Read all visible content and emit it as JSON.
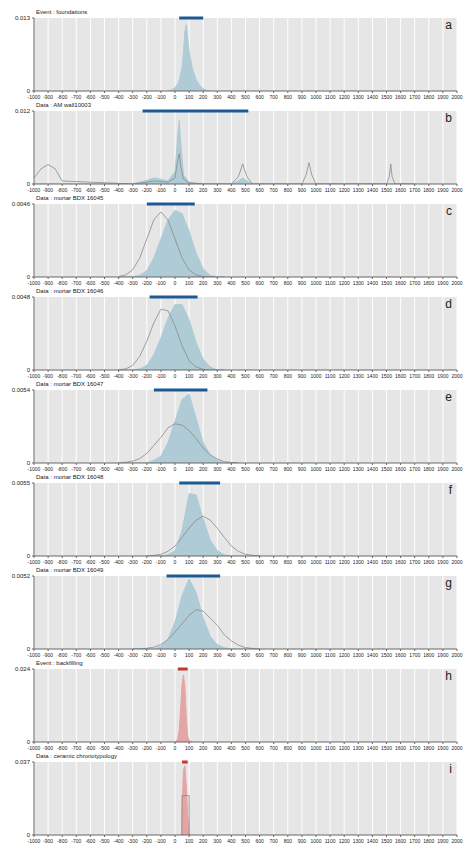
{
  "chart_data": [
    {
      "type": "area",
      "title": "Event : foundations",
      "annotation": "a",
      "grid": true,
      "xlim": [
        -1000,
        2000
      ],
      "xticks": [
        -1000,
        -900,
        -800,
        -700,
        -600,
        -500,
        -400,
        -300,
        -200,
        -100,
        0,
        100,
        200,
        300,
        400,
        500,
        600,
        700,
        800,
        900,
        1000,
        1100,
        1200,
        1300,
        1400,
        1500,
        1600,
        1700,
        1800,
        1900,
        2000
      ],
      "ylim": [
        0,
        0.013
      ],
      "yticks": [
        0,
        0.013
      ],
      "x": [
        -50,
        -25,
        0,
        25,
        50,
        60,
        70,
        80,
        90,
        100,
        125,
        150,
        175,
        200,
        225,
        250
      ],
      "series": [
        {
          "type": "area",
          "color": "#aecbd6",
          "values": [
            0,
            0.0002,
            0.0006,
            0.0015,
            0.004,
            0.007,
            0.0105,
            0.0118,
            0.0095,
            0.007,
            0.0038,
            0.002,
            0.001,
            0.0004,
            0.0001,
            0
          ]
        }
      ],
      "range": {
        "values": [
          30,
          200
        ],
        "color": "#1d5a91"
      }
    },
    {
      "type": "area",
      "title": "Data : AM wall10003",
      "annotation": "b",
      "grid": true,
      "xlim": [
        -1000,
        2000
      ],
      "xticks": [
        -1000,
        -900,
        -800,
        -700,
        -600,
        -500,
        -400,
        -300,
        -200,
        -100,
        0,
        100,
        200,
        300,
        400,
        500,
        600,
        700,
        800,
        900,
        1000,
        1100,
        1200,
        1300,
        1400,
        1500,
        1600,
        1700,
        1800,
        1900,
        2000
      ],
      "ylim": [
        0,
        0.012
      ],
      "yticks": [
        0,
        0.012
      ],
      "x": [
        -1000,
        -950,
        -900,
        -850,
        -800,
        -300,
        -200,
        -150,
        -100,
        -50,
        0,
        20,
        30,
        40,
        60,
        100,
        200,
        400,
        450,
        480,
        510,
        550,
        900,
        930,
        950,
        970,
        1000,
        1500,
        1520,
        1530,
        1540,
        1560,
        1700
      ],
      "series": [
        {
          "type": "area",
          "color": "#aecbd6",
          "values": [
            0,
            0,
            0,
            0,
            0,
            0,
            0.0006,
            0.001,
            0.0008,
            0.0005,
            0.002,
            0.008,
            0.0105,
            0.007,
            0.0015,
            0.0003,
            0,
            0,
            0.0005,
            0.001,
            0.0005,
            0,
            0,
            0,
            0,
            0,
            0,
            0,
            0,
            0,
            0,
            0,
            0
          ]
        },
        {
          "type": "line",
          "color": "#8a8a8a",
          "values": [
            0.001,
            0.0025,
            0.0032,
            0.0025,
            0.0005,
            0,
            0.0003,
            0.0005,
            0.0004,
            0.0003,
            0.001,
            0.004,
            0.005,
            0.003,
            0.0008,
            0.0002,
            0,
            0,
            0.0012,
            0.0033,
            0.0012,
            0,
            0,
            0.0015,
            0.0035,
            0.0015,
            0,
            0,
            0.0012,
            0.0033,
            0.0012,
            0,
            0
          ]
        }
      ],
      "range": {
        "values": [
          -230,
          520
        ],
        "color": "#1d5a91"
      }
    },
    {
      "type": "area",
      "title": "Data : mortar BDX 16045",
      "annotation": "c",
      "grid": true,
      "xlim": [
        -1000,
        2000
      ],
      "xticks": [
        -1000,
        -900,
        -800,
        -700,
        -600,
        -500,
        -400,
        -300,
        -200,
        -100,
        0,
        100,
        200,
        300,
        400,
        500,
        600,
        700,
        800,
        900,
        1000,
        1100,
        1200,
        1300,
        1400,
        1500,
        1600,
        1700,
        1800,
        1900,
        2000
      ],
      "ylim": [
        0,
        0.0046
      ],
      "yticks": [
        0,
        0.0046
      ],
      "x": [
        -400,
        -350,
        -300,
        -250,
        -200,
        -150,
        -100,
        -50,
        0,
        50,
        100,
        150,
        200,
        250,
        300,
        350
      ],
      "series": [
        {
          "type": "area",
          "color": "#aecbd6",
          "values": [
            0,
            0,
            2e-05,
            0.0001,
            0.0004,
            0.0012,
            0.0024,
            0.0036,
            0.0042,
            0.004,
            0.0029,
            0.0015,
            0.0005,
            0.0001,
            0,
            0
          ]
        },
        {
          "type": "line",
          "color": "#8a8a8a",
          "values": [
            3e-05,
            0.00013,
            0.00045,
            0.0012,
            0.0024,
            0.0036,
            0.0041,
            0.0036,
            0.0024,
            0.0012,
            0.00045,
            0.00013,
            3e-05,
            0,
            0,
            0
          ]
        }
      ],
      "range": {
        "values": [
          -200,
          140
        ],
        "color": "#1d5a91"
      }
    },
    {
      "type": "area",
      "title": "Data : mortar BDX 16046",
      "annotation": "d",
      "grid": true,
      "xlim": [
        -1000,
        2000
      ],
      "xticks": [
        -1000,
        -900,
        -800,
        -700,
        -600,
        -500,
        -400,
        -300,
        -200,
        -100,
        0,
        100,
        200,
        300,
        400,
        500,
        600,
        700,
        800,
        900,
        1000,
        1100,
        1200,
        1300,
        1400,
        1500,
        1600,
        1700,
        1800,
        1900,
        2000
      ],
      "ylim": [
        0,
        0.0048
      ],
      "yticks": [
        0,
        0.0048
      ],
      "x": [
        -400,
        -350,
        -300,
        -250,
        -200,
        -150,
        -100,
        -50,
        0,
        50,
        100,
        150,
        200,
        250,
        300,
        350
      ],
      "series": [
        {
          "type": "area",
          "color": "#aecbd6",
          "values": [
            0,
            0,
            0,
            8e-05,
            0.0003,
            0.001,
            0.0021,
            0.0034,
            0.0043,
            0.0043,
            0.0033,
            0.0018,
            0.0007,
            0.0002,
            0,
            0
          ]
        },
        {
          "type": "line",
          "color": "#8a8a8a",
          "values": [
            1e-05,
            7e-05,
            0.0003,
            0.0009,
            0.0019,
            0.0031,
            0.004,
            0.0039,
            0.0029,
            0.0016,
            0.0006,
            0.0002,
            4e-05,
            0,
            0,
            0
          ]
        }
      ],
      "range": {
        "values": [
          -180,
          160
        ],
        "color": "#1d5a91"
      }
    },
    {
      "type": "area",
      "title": "Data : mortar BDX 16047",
      "annotation": "e",
      "grid": true,
      "xlim": [
        -1000,
        2000
      ],
      "xticks": [
        -1000,
        -900,
        -800,
        -700,
        -600,
        -500,
        -400,
        -300,
        -200,
        -100,
        0,
        100,
        200,
        300,
        400,
        500,
        600,
        700,
        800,
        900,
        1000,
        1100,
        1200,
        1300,
        1400,
        1500,
        1600,
        1700,
        1800,
        1900,
        2000
      ],
      "ylim": [
        0,
        0.0054
      ],
      "yticks": [
        0,
        0.0054
      ],
      "x": [
        -400,
        -350,
        -300,
        -250,
        -200,
        -150,
        -100,
        -50,
        0,
        50,
        100,
        150,
        200,
        250,
        300,
        350,
        400,
        450
      ],
      "series": [
        {
          "type": "area",
          "color": "#aecbd6",
          "values": [
            0,
            0,
            0,
            0,
            0,
            0.0002,
            0.0005,
            0.0015,
            0.0031,
            0.0047,
            0.0051,
            0.0033,
            0.0015,
            0.0006,
            0.0002,
            0,
            0,
            0
          ]
        },
        {
          "type": "line",
          "color": "#8a8a8a",
          "values": [
            1e-05,
            5e-05,
            0.00014,
            0.00033,
            0.00071,
            0.0013,
            0.0019,
            0.0026,
            0.0029,
            0.0028,
            0.0024,
            0.0018,
            0.0011,
            0.0006,
            0.0003,
            0.0001,
            4e-05,
            1e-05
          ]
        }
      ],
      "range": {
        "values": [
          -150,
          230
        ],
        "color": "#1d5a91"
      }
    },
    {
      "type": "area",
      "title": "Data : mortar BDX 16048",
      "annotation": "f",
      "grid": true,
      "xlim": [
        -1000,
        2000
      ],
      "xticks": [
        -1000,
        -900,
        -800,
        -700,
        -600,
        -500,
        -400,
        -300,
        -200,
        -100,
        0,
        100,
        200,
        300,
        400,
        500,
        600,
        700,
        800,
        900,
        1000,
        1100,
        1200,
        1300,
        1400,
        1500,
        1600,
        1700,
        1800,
        1900,
        2000
      ],
      "ylim": [
        0,
        0.0055
      ],
      "yticks": [
        0,
        0.0055
      ],
      "x": [
        -200,
        -150,
        -100,
        -50,
        0,
        50,
        100,
        150,
        200,
        250,
        300,
        350,
        400,
        450,
        500,
        550,
        600
      ],
      "series": [
        {
          "type": "area",
          "color": "#aecbd6",
          "values": [
            0,
            0,
            0,
            0.0001,
            0.0004,
            0.0019,
            0.0047,
            0.0046,
            0.0028,
            0.0012,
            0.0004,
            0.0001,
            0,
            0,
            0,
            0,
            0
          ]
        },
        {
          "type": "line",
          "color": "#8a8a8a",
          "values": [
            1e-05,
            5e-05,
            0.00013,
            0.00035,
            0.00075,
            0.0014,
            0.0021,
            0.0027,
            0.003,
            0.0027,
            0.0021,
            0.0014,
            0.00075,
            0.00035,
            0.00013,
            5e-05,
            1e-05
          ]
        }
      ],
      "range": {
        "values": [
          30,
          320
        ],
        "color": "#1d5a91"
      }
    },
    {
      "type": "area",
      "title": "Data : mortar BDX 16049",
      "annotation": "g",
      "grid": true,
      "xlim": [
        -1000,
        2000
      ],
      "xticks": [
        -1000,
        -900,
        -800,
        -700,
        -600,
        -500,
        -400,
        -300,
        -200,
        -100,
        0,
        100,
        200,
        300,
        400,
        500,
        600,
        700,
        800,
        900,
        1000,
        1100,
        1200,
        1300,
        1400,
        1500,
        1600,
        1700,
        1800,
        1900,
        2000
      ],
      "ylim": [
        0,
        0.0052
      ],
      "yticks": [
        0,
        0.0052
      ],
      "x": [
        -300,
        -250,
        -200,
        -150,
        -100,
        -50,
        0,
        50,
        100,
        150,
        200,
        250,
        300,
        350,
        400,
        450,
        500,
        550,
        600
      ],
      "series": [
        {
          "type": "area",
          "color": "#aecbd6",
          "values": [
            0,
            0,
            0,
            0,
            0.0002,
            0.0007,
            0.0019,
            0.0038,
            0.005,
            0.004,
            0.0022,
            0.0009,
            0.0003,
            0.0001,
            0,
            0,
            0,
            0,
            0
          ]
        },
        {
          "type": "line",
          "color": "#8a8a8a",
          "values": [
            0,
            1e-05,
            5e-05,
            0.00013,
            0.00032,
            0.00068,
            0.0012,
            0.0018,
            0.0024,
            0.0028,
            0.0027,
            0.0022,
            0.0017,
            0.001,
            0.00058,
            0.00027,
            0.0001,
            4e-05,
            1e-05
          ]
        }
      ],
      "range": {
        "values": [
          -60,
          320
        ],
        "color": "#1d5a91"
      }
    },
    {
      "type": "area",
      "title": "Event : backfilling",
      "annotation": "h",
      "grid": true,
      "xlim": [
        -1000,
        2000
      ],
      "xticks": [
        -1000,
        -900,
        -800,
        -700,
        -600,
        -500,
        -400,
        -300,
        -200,
        -100,
        0,
        100,
        200,
        300,
        400,
        500,
        600,
        700,
        800,
        900,
        1000,
        1100,
        1200,
        1300,
        1400,
        1500,
        1600,
        1700,
        1800,
        1900,
        2000
      ],
      "ylim": [
        0,
        0.024
      ],
      "yticks": [
        0,
        0.024
      ],
      "x": [
        0,
        20,
        30,
        40,
        50,
        60,
        70,
        80,
        90,
        100,
        120
      ],
      "series": [
        {
          "type": "area",
          "color": "#e3a5a5",
          "values": [
            0,
            0.001,
            0.004,
            0.011,
            0.019,
            0.022,
            0.018,
            0.008,
            0.002,
            0.0005,
            0
          ]
        }
      ],
      "range": {
        "values": [
          20,
          90
        ],
        "color": "#c0392b"
      }
    },
    {
      "type": "area",
      "title": "Data : ceramic chronotypology",
      "annotation": "i",
      "grid": true,
      "xlim": [
        -1000,
        2000
      ],
      "xticks": [
        -1000,
        -900,
        -800,
        -700,
        -600,
        -500,
        -400,
        -300,
        -200,
        -100,
        0,
        100,
        200,
        300,
        400,
        500,
        600,
        700,
        800,
        900,
        1000,
        1100,
        1200,
        1300,
        1400,
        1500,
        1600,
        1700,
        1800,
        1900,
        2000
      ],
      "ylim": [
        0,
        0.037
      ],
      "yticks": [
        0,
        0.037
      ],
      "x": [
        40,
        49,
        50,
        60,
        70,
        80,
        90,
        100,
        101,
        110
      ],
      "series": [
        {
          "type": "area",
          "color": "#e3a5a5",
          "values": [
            0,
            0,
            0.012,
            0.033,
            0.035,
            0.025,
            0.01,
            0.0005,
            0,
            0
          ]
        },
        {
          "type": "line",
          "color": "#9a7a7a",
          "values": [
            0,
            0,
            0.02,
            0.02,
            0.02,
            0.02,
            0.02,
            0.02,
            0,
            0
          ]
        }
      ],
      "range": {
        "values": [
          50,
          90
        ],
        "color": "#c0392b"
      }
    }
  ]
}
